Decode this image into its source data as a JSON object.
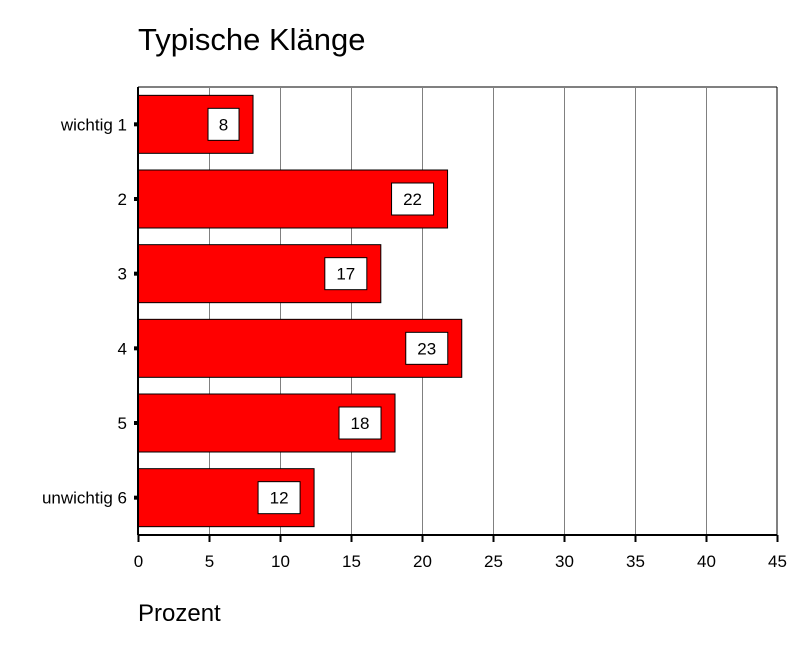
{
  "chart_data": {
    "type": "bar",
    "orientation": "horizontal",
    "title": "Typische Klänge",
    "xlabel": "Prozent",
    "ylabel": "",
    "categories": [
      "wichtig 1",
      "2",
      "3",
      "4",
      "5",
      "unwichtig 6"
    ],
    "values": [
      8.1,
      21.8,
      17.1,
      22.8,
      18.1,
      12.4
    ],
    "data_labels": [
      "8",
      "22",
      "17",
      "23",
      "18",
      "12"
    ],
    "xlim": [
      0,
      45
    ],
    "xticks": [
      "0",
      "5",
      "10",
      "15",
      "20",
      "25",
      "30",
      "35",
      "40",
      "45"
    ],
    "grid": "vertical",
    "bar_color": "#ff0000",
    "bar_edge_color": "#000000",
    "label_box_color": "#ffffff"
  }
}
